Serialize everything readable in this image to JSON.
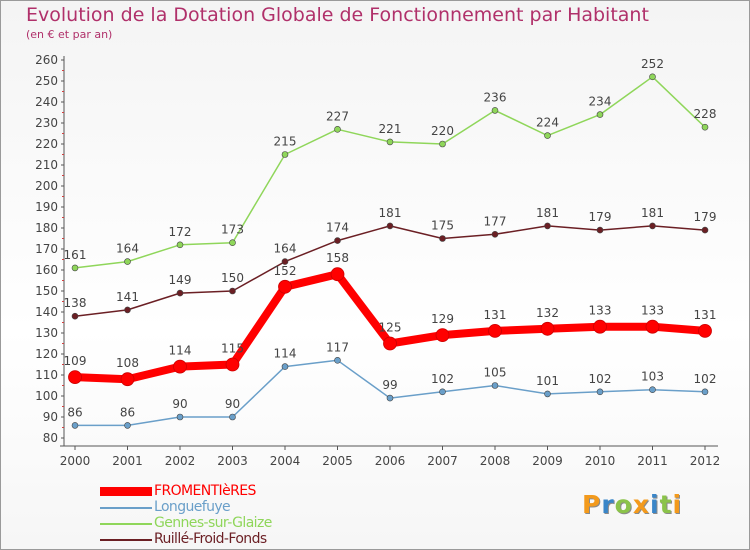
{
  "header": {
    "title": "Evolution de la Dotation Globale de Fonctionnement par Habitant",
    "subtitle": "(en € et par an)"
  },
  "chart_data": {
    "type": "line",
    "title": "Evolution de la Dotation Globale de Fonctionnement par Habitant",
    "subtitle": "(en € et par an)",
    "xlabel": "",
    "ylabel": "",
    "x": [
      2000,
      2001,
      2002,
      2003,
      2004,
      2005,
      2006,
      2007,
      2008,
      2009,
      2010,
      2011,
      2012
    ],
    "ylim": [
      80,
      260
    ],
    "yticks": [
      80,
      90,
      100,
      110,
      120,
      130,
      140,
      150,
      160,
      170,
      180,
      190,
      200,
      210,
      220,
      230,
      240,
      250,
      260
    ],
    "grid": false,
    "legend_position": "bottom-left",
    "series": [
      {
        "name": "Ruillé-Froid-Fonds",
        "color": "#6b1f24",
        "values": [
          138,
          141,
          149,
          150,
          164,
          174,
          181,
          175,
          177,
          181,
          179,
          181,
          179
        ]
      },
      {
        "name": "Gennes-sur-Glaize",
        "color": "#8fd65a",
        "values": [
          161,
          164,
          172,
          173,
          215,
          227,
          221,
          220,
          236,
          224,
          234,
          252,
          228
        ]
      },
      {
        "name": "Longuefuye",
        "color": "#6a9fc9",
        "values": [
          86,
          86,
          90,
          90,
          114,
          117,
          99,
          102,
          105,
          101,
          102,
          103,
          102
        ]
      },
      {
        "name": "FROMENTIèRES",
        "color": "#ff0000",
        "values": [
          109,
          108,
          114,
          115,
          152,
          158,
          125,
          129,
          131,
          132,
          133,
          133,
          131
        ]
      }
    ],
    "legend": [
      {
        "name": "FROMENTIèRES",
        "color": "#ff0000"
      },
      {
        "name": "Longuefuye",
        "color": "#6a9fc9"
      },
      {
        "name": "Gennes-sur-Glaize",
        "color": "#8fd65a"
      },
      {
        "name": "Ruillé-Froid-Fonds",
        "color": "#6b1f24"
      }
    ]
  },
  "logo": {
    "letters": [
      "P",
      "r",
      "o",
      "x",
      "i",
      "t",
      "i"
    ],
    "colors": [
      "#f39a1c",
      "#3a86c8",
      "#8bc34a",
      "#f39a1c",
      "#3a86c8",
      "#8bc34a",
      "#f39a1c"
    ]
  }
}
